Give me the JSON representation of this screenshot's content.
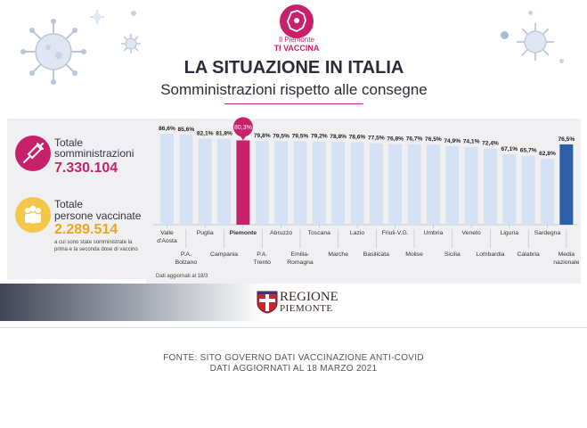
{
  "logo": {
    "line1": "Il Piemonte",
    "line2": "TI VACCINA"
  },
  "title": "LA SITUAZIONE IN ITALIA",
  "subtitle": "Somministrazioni rispetto alle consegne",
  "stats": {
    "total_administrations_label_1": "Totale",
    "total_administrations_label_2": "somministrazioni",
    "total_administrations_value": "7.330.104",
    "total_vaccinated_label_1": "Totale",
    "total_vaccinated_label_2": "persone vaccinate",
    "total_vaccinated_value": "2.289.514",
    "note": "a cui sono state somministrate la prima e la seconda dose di vaccino"
  },
  "footnote": "Dati aggiornati al 18/3",
  "region": {
    "line1": "REGIONE",
    "line2": "PIEMONTE"
  },
  "source": {
    "line1": "FONTE: SITO GOVERNO DATI VACCINAZIONE ANTI-COVID",
    "line2": "DATI AGGIORNATI AL 18 MARZO 2021"
  },
  "colors": {
    "magenta": "#c8216b",
    "yellow": "#f4c64a",
    "bar": "#d4e2f4",
    "national": "#2d5fa6"
  },
  "chart_data": {
    "type": "bar",
    "categories": [
      "Valle d'Aosta",
      "P.A. Bolzano",
      "Puglia",
      "Campania",
      "Piemonte",
      "P.A. Trento",
      "Abruzzo",
      "Emilia-Romagna",
      "Toscana",
      "Marche",
      "Lazio",
      "Basilicata",
      "Friuli-V.G.",
      "Molise",
      "Umbria",
      "Sicilia",
      "Veneto",
      "Lombardia",
      "Liguria",
      "Calabria",
      "Sardegna",
      "Media nazionale"
    ],
    "category_labels": [
      [
        "Valle",
        "d'Aosta"
      ],
      [
        "P.A.",
        "Bolzano"
      ],
      [
        "Puglia"
      ],
      [
        "Campania"
      ],
      [
        "Piemonte"
      ],
      [
        "P.A.",
        "Trento"
      ],
      [
        "Abruzzo"
      ],
      [
        "Emilia-",
        "Romagna"
      ],
      [
        "Toscana"
      ],
      [
        "Marche"
      ],
      [
        "Lazio"
      ],
      [
        "Basilicata"
      ],
      [
        "Friuli-V.G."
      ],
      [
        "Molise"
      ],
      [
        "Umbria"
      ],
      [
        "Sicilia"
      ],
      [
        "Veneto"
      ],
      [
        "Lombardia"
      ],
      [
        "Liguria"
      ],
      [
        "Calabria"
      ],
      [
        "Sardegna"
      ],
      [
        "Media",
        "nazionale"
      ]
    ],
    "values": [
      86.6,
      85.6,
      82.1,
      81.8,
      80.3,
      79.8,
      79.5,
      79.5,
      79.2,
      78.8,
      78.6,
      77.5,
      76.8,
      76.7,
      76.5,
      74.9,
      74.1,
      72.4,
      67.1,
      65.7,
      62.8,
      76.5
    ],
    "value_labels": [
      "86,6%",
      "85,6%",
      "82,1%",
      "81,8%",
      "80,3%",
      "79,8%",
      "79,5%",
      "79,5%",
      "79,2%",
      "78,8%",
      "78,6%",
      "77,5%",
      "76,8%",
      "76,7%",
      "76,5%",
      "74,9%",
      "74,1%",
      "72,4%",
      "67,1%",
      "65,7%",
      "62,8%",
      "76,5%"
    ],
    "highlight": "Piemonte",
    "highlight_color": "#c8216b",
    "national_color": "#2d5fa6",
    "bar_color": "#d4e2f4",
    "ylim": [
      0,
      100
    ],
    "grid": false,
    "xlabel": "",
    "ylabel": ""
  }
}
